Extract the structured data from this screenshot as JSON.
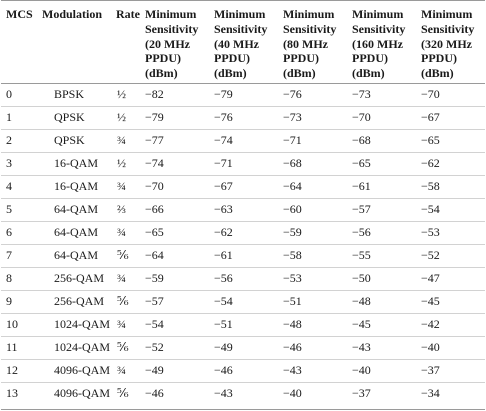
{
  "table": {
    "headers": {
      "mcs": "MCS",
      "modulation": "Modulation",
      "rate": "Rate",
      "s20": [
        "Minimum",
        "Sensitivity",
        "(20 MHz",
        "PPDU)",
        "(dBm)"
      ],
      "s40": [
        "Minimum",
        "Sensitivity",
        "(40 MHz",
        "PPDU)",
        "(dBm)"
      ],
      "s80": [
        "Minimum",
        "Sensitivity",
        "(80 MHz",
        "PPDU)",
        "(dBm)"
      ],
      "s160": [
        "Minimum",
        "Sensitivity",
        "(160 MHz",
        "PPDU)",
        "(dBm)"
      ],
      "s320": [
        "Minimum",
        "Sensitivity",
        "(320 MHz",
        "PPDU)",
        "(dBm)"
      ]
    },
    "rows": [
      {
        "mcs": "0",
        "modulation": "BPSK",
        "rate": "½",
        "s20": "−82",
        "s40": "−79",
        "s80": "−76",
        "s160": "−73",
        "s320": "−70"
      },
      {
        "mcs": "1",
        "modulation": "QPSK",
        "rate": "½",
        "s20": "−79",
        "s40": "−76",
        "s80": "−73",
        "s160": "−70",
        "s320": "−67"
      },
      {
        "mcs": "2",
        "modulation": "QPSK",
        "rate": "¾",
        "s20": "−77",
        "s40": "−74",
        "s80": "−71",
        "s160": "−68",
        "s320": "−65"
      },
      {
        "mcs": "3",
        "modulation": "16-QAM",
        "rate": "½",
        "s20": "−74",
        "s40": "−71",
        "s80": "−68",
        "s160": "−65",
        "s320": "−62"
      },
      {
        "mcs": "4",
        "modulation": "16-QAM",
        "rate": "¾",
        "s20": "−70",
        "s40": "−67",
        "s80": "−64",
        "s160": "−61",
        "s320": "−58"
      },
      {
        "mcs": "5",
        "modulation": "64-QAM",
        "rate": "⅔",
        "s20": "−66",
        "s40": "−63",
        "s80": "−60",
        "s160": "−57",
        "s320": "−54"
      },
      {
        "mcs": "6",
        "modulation": "64-QAM",
        "rate": "¾",
        "s20": "−65",
        "s40": "−62",
        "s80": "−59",
        "s160": "−56",
        "s320": "−53"
      },
      {
        "mcs": "7",
        "modulation": "64-QAM",
        "rate": "⅚",
        "s20": "−64",
        "s40": "−61",
        "s80": "−58",
        "s160": "−55",
        "s320": "−52"
      },
      {
        "mcs": "8",
        "modulation": "256-QAM",
        "rate": "¾",
        "s20": "−59",
        "s40": "−56",
        "s80": "−53",
        "s160": "−50",
        "s320": "−47"
      },
      {
        "mcs": "9",
        "modulation": "256-QAM",
        "rate": "⅚",
        "s20": "−57",
        "s40": "−54",
        "s80": "−51",
        "s160": "−48",
        "s320": "−45"
      },
      {
        "mcs": "10",
        "modulation": "1024-QAM",
        "rate": "¾",
        "s20": "−54",
        "s40": "−51",
        "s80": "−48",
        "s160": "−45",
        "s320": "−42"
      },
      {
        "mcs": "11",
        "modulation": "1024-QAM",
        "rate": "⅚",
        "s20": "−52",
        "s40": "−49",
        "s80": "−46",
        "s160": "−43",
        "s320": "−40"
      },
      {
        "mcs": "12",
        "modulation": "4096-QAM",
        "rate": "¾",
        "s20": "−49",
        "s40": "−46",
        "s80": "−43",
        "s160": "−40",
        "s320": "−37"
      },
      {
        "mcs": "13",
        "modulation": "4096-QAM",
        "rate": "⅚",
        "s20": "−46",
        "s40": "−43",
        "s80": "−40",
        "s160": "−37",
        "s320": "−34"
      }
    ]
  }
}
